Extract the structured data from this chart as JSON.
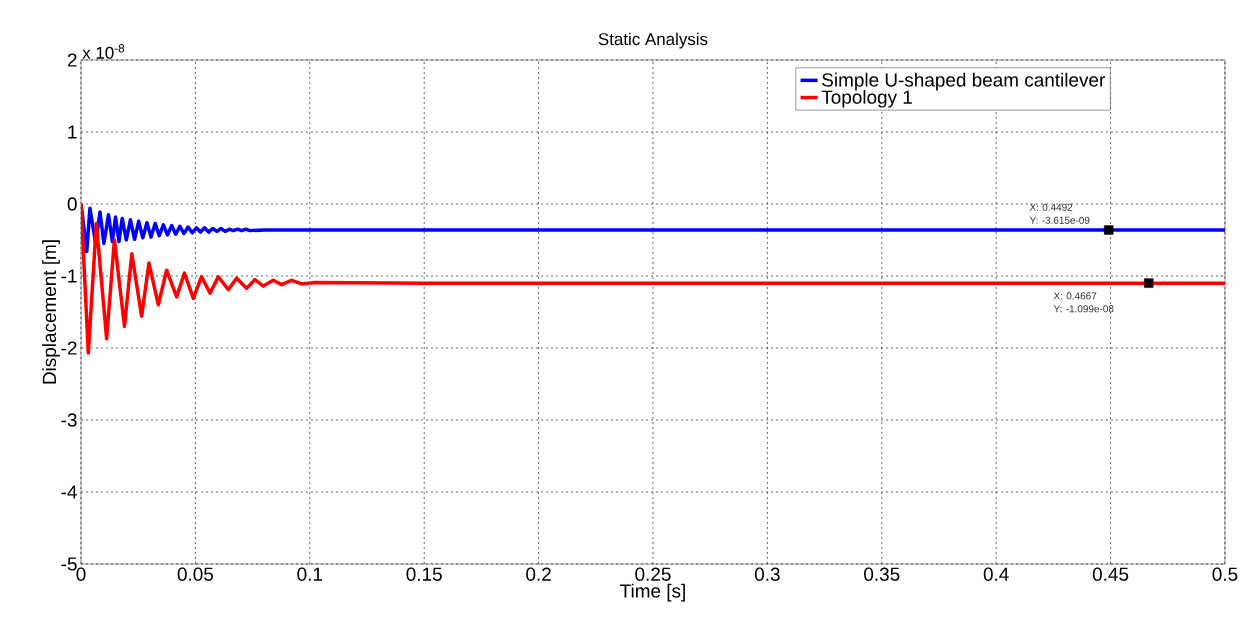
{
  "chart_data": {
    "type": "line",
    "title": "Static Analysis",
    "xlabel": "Time [s]",
    "ylabel": "Displacement [m]",
    "xlim": [
      0,
      0.5
    ],
    "ylim": [
      -5,
      2
    ],
    "xticks": [
      0,
      0.05,
      0.1,
      0.15,
      0.2,
      0.25,
      0.3,
      0.35,
      0.4,
      0.45,
      0.5
    ],
    "yticks": [
      -5,
      -4,
      -3,
      -2,
      -1,
      0,
      1,
      2
    ],
    "grid": true,
    "legend": "top right",
    "line_style": "solid",
    "annotations": [
      "x 10$^{-8}$",
      "X: 0.4492",
      "Y: -3.615e-09",
      "X: 0.4667",
      "Y: -1.099e-08"
    ],
    "series": [
      {
        "name": "Simple U-shaped beam cantilever",
        "color": "#0000ff",
        "x": [
          0,
          0.0025,
          0.0039,
          0.0064,
          0.0083,
          0.01,
          0.012,
          0.0137,
          0.0151,
          0.0166,
          0.018,
          0.0198,
          0.0216,
          0.0234,
          0.0252,
          0.027,
          0.0288,
          0.0306,
          0.0324,
          0.0342,
          0.036,
          0.0378,
          0.0396,
          0.0414,
          0.0432,
          0.045,
          0.0468,
          0.0486,
          0.0504,
          0.0522,
          0.054,
          0.0558,
          0.0576,
          0.0594,
          0.0612,
          0.063,
          0.0648,
          0.0666,
          0.0684,
          0.0702,
          0.072,
          0.0738,
          0.08,
          0.1,
          0.4492,
          0.5
        ],
        "values": [
          0,
          -0.66,
          -0.06,
          -0.55,
          -0.11,
          -0.55,
          -0.15,
          -0.52,
          -0.18,
          -0.52,
          -0.2,
          -0.5,
          -0.22,
          -0.49,
          -0.24,
          -0.47,
          -0.26,
          -0.46,
          -0.27,
          -0.44,
          -0.29,
          -0.43,
          -0.3,
          -0.42,
          -0.31,
          -0.41,
          -0.32,
          -0.4,
          -0.33,
          -0.39,
          -0.33,
          -0.39,
          -0.34,
          -0.38,
          -0.34,
          -0.38,
          -0.35,
          -0.37,
          -0.35,
          -0.37,
          -0.35,
          -0.37,
          -0.36,
          -0.36,
          -0.36,
          -0.36
        ]
      },
      {
        "name": "Topology 1",
        "color": "#ff0000",
        "x": [
          0,
          0.0032,
          0.0067,
          0.0112,
          0.0146,
          0.019,
          0.0222,
          0.0265,
          0.0297,
          0.0338,
          0.0374,
          0.0418,
          0.0452,
          0.0491,
          0.0527,
          0.0564,
          0.06,
          0.0644,
          0.068,
          0.0724,
          0.076,
          0.0797,
          0.084,
          0.0877,
          0.092,
          0.0964,
          0.1023,
          0.15,
          0.4667,
          0.5
        ],
        "values": [
          0,
          -2.07,
          -0.27,
          -1.87,
          -0.5,
          -1.7,
          -0.69,
          -1.56,
          -0.82,
          -1.4,
          -0.92,
          -1.29,
          -0.96,
          -1.31,
          -1.01,
          -1.24,
          -1.01,
          -1.19,
          -1.03,
          -1.17,
          -1.05,
          -1.14,
          -1.06,
          -1.12,
          -1.06,
          -1.11,
          -1.09,
          -1.1,
          -1.1,
          -1.1
        ]
      },
      {
        "type": "scatter",
        "marker": "square",
        "color": "#000000",
        "x": [
          0.4492,
          0.4667
        ],
        "values": [
          -0.3615,
          -1.099
        ]
      }
    ]
  }
}
